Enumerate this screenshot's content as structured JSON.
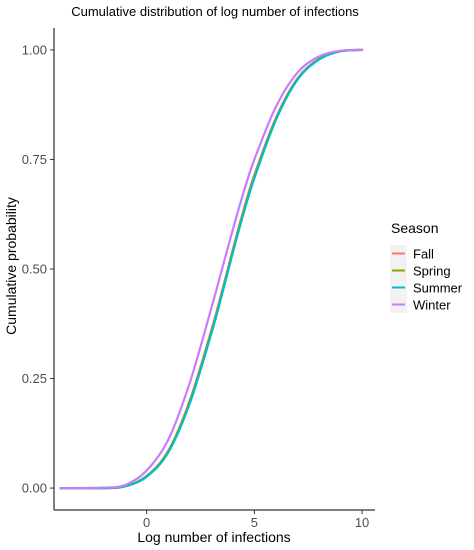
{
  "chart_data": {
    "type": "line",
    "title": "Cumulative distribution of log number of infections",
    "xlabel": "Log number of infections",
    "ylabel": "Cumulative probability",
    "xlim": [
      -4.3,
      10.6
    ],
    "ylim": [
      -0.05,
      1.05
    ],
    "x_ticks": [
      0,
      5,
      10
    ],
    "x_tick_labels": [
      "0",
      "5",
      "10"
    ],
    "y_ticks": [
      0,
      0.25,
      0.5,
      0.75,
      1.0
    ],
    "y_tick_labels": [
      "0.00",
      "0.25",
      "0.50",
      "0.75",
      "1.00"
    ],
    "grid": false,
    "legend": {
      "title": "Season",
      "position": "right"
    },
    "series": [
      {
        "name": "Fall",
        "color": "#F8766D",
        "x": [
          -4,
          -2,
          -1,
          0,
          1,
          2,
          3,
          3.5,
          4,
          4.5,
          5,
          6,
          7,
          8,
          9,
          10
        ],
        "y": [
          0.0,
          0.0,
          0.004,
          0.028,
          0.085,
          0.2,
          0.36,
          0.45,
          0.545,
          0.635,
          0.715,
          0.845,
          0.935,
          0.98,
          0.997,
          1.0
        ]
      },
      {
        "name": "Spring",
        "color": "#7CAE00",
        "x": [
          -4,
          -2,
          -1,
          0,
          1,
          2,
          3,
          3.5,
          4,
          4.5,
          5,
          6,
          7,
          8,
          9,
          10
        ],
        "y": [
          0.0,
          0.0,
          0.004,
          0.027,
          0.083,
          0.196,
          0.355,
          0.445,
          0.54,
          0.63,
          0.71,
          0.842,
          0.933,
          0.979,
          0.997,
          1.0
        ]
      },
      {
        "name": "Summer",
        "color": "#00BFC4",
        "x": [
          -4,
          -2,
          -1,
          0,
          1,
          2,
          3,
          3.5,
          4,
          4.5,
          5,
          6,
          7,
          8,
          9,
          10
        ],
        "y": [
          0.0,
          0.0,
          0.004,
          0.026,
          0.081,
          0.193,
          0.352,
          0.442,
          0.537,
          0.627,
          0.707,
          0.84,
          0.932,
          0.978,
          0.997,
          1.0
        ]
      },
      {
        "name": "Winter",
        "color": "#C77CFF",
        "x": [
          -4,
          -2,
          -1,
          0,
          1,
          2,
          3,
          3.5,
          4,
          4.5,
          5,
          6,
          7,
          8,
          9,
          10
        ],
        "y": [
          0.0,
          0.001,
          0.007,
          0.04,
          0.11,
          0.24,
          0.41,
          0.5,
          0.59,
          0.675,
          0.75,
          0.87,
          0.948,
          0.985,
          0.998,
          1.0
        ]
      }
    ]
  }
}
